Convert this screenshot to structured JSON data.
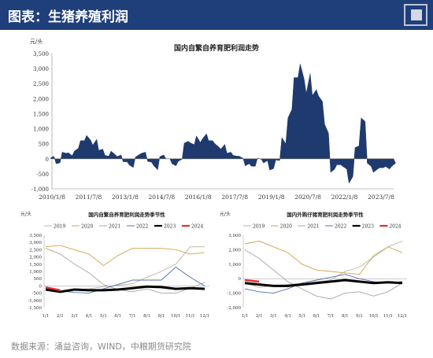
{
  "header": {
    "title": "图表：生猪养殖利润"
  },
  "footer": {
    "source": "数据来源：涌益咨询，WIND，中粮期货研究院"
  },
  "colors": {
    "header_bg": "#1f3f7a",
    "main_fill": "#1f3a6e"
  },
  "chart_data": [
    {
      "type": "area",
      "title": "国内自繁自养育肥利润走势",
      "ylabel": "元/头",
      "ylim": [
        -1000,
        3500
      ],
      "yticks": [
        "3,500",
        "3,000",
        "2,500",
        "2,000",
        "1,500",
        "1,000",
        "500",
        "0",
        "-500",
        "-1,000"
      ],
      "xticks": [
        "2010/1/8",
        "2011/7/8",
        "2013/1/8",
        "2014/7/8",
        "2016/1/8",
        "2017/7/8",
        "2019/1/8",
        "2020/7/8",
        "2022/1/8",
        "2023/7/8"
      ],
      "x": [
        "2010-01",
        "2010-04",
        "2010-07",
        "2010-10",
        "2011-01",
        "2011-04",
        "2011-07",
        "2011-10",
        "2012-01",
        "2012-04",
        "2012-07",
        "2012-10",
        "2013-01",
        "2013-04",
        "2013-07",
        "2013-10",
        "2014-01",
        "2014-04",
        "2014-07",
        "2014-10",
        "2015-01",
        "2015-04",
        "2015-07",
        "2015-10",
        "2016-01",
        "2016-04",
        "2016-07",
        "2016-10",
        "2017-01",
        "2017-04",
        "2017-07",
        "2017-10",
        "2018-01",
        "2018-04",
        "2018-07",
        "2018-10",
        "2019-01",
        "2019-04",
        "2019-07",
        "2019-10",
        "2020-01",
        "2020-04",
        "2020-07",
        "2020-10",
        "2021-01",
        "2021-04",
        "2021-07",
        "2021-10",
        "2022-01",
        "2022-04",
        "2022-07",
        "2022-10",
        "2023-01",
        "2023-04",
        "2023-07",
        "2023-10",
        "2024-01"
      ],
      "values": [
        50,
        -150,
        200,
        150,
        300,
        600,
        700,
        550,
        300,
        100,
        200,
        100,
        -100,
        -250,
        100,
        200,
        -100,
        -300,
        100,
        0,
        -200,
        -50,
        550,
        500,
        650,
        750,
        600,
        450,
        400,
        200,
        100,
        50,
        -200,
        -250,
        0,
        -100,
        -350,
        -50,
        600,
        1500,
        2700,
        2900,
        2500,
        2200,
        2000,
        1000,
        -400,
        -200,
        -300,
        -700,
        400,
        1300,
        -200,
        -400,
        -300,
        -300,
        -200
      ]
    },
    {
      "type": "line",
      "title": "国内自繁自养育肥利润走势季节性",
      "ylabel": "元/头",
      "ylim": [
        -1500,
        3500
      ],
      "yticks": [
        "3,500",
        "3,000",
        "2,500",
        "2,000",
        "1,500",
        "1,000",
        "500",
        "0",
        "-500",
        "-1,000",
        "-1,500"
      ],
      "categories": [
        "1/1",
        "2/1",
        "3/1",
        "4/1",
        "5/1",
        "6/1",
        "7/1",
        "8/1",
        "9/1",
        "10/1",
        "11/1",
        "12/1"
      ],
      "series": [
        {
          "name": "2019",
          "color": "#b9b39c",
          "values": [
            -300,
            -400,
            -250,
            -200,
            -50,
            50,
            150,
            600,
            1000,
            1500,
            2700,
            2700
          ]
        },
        {
          "name": "2020",
          "color": "#d4a24a",
          "values": [
            2700,
            2800,
            2500,
            2200,
            1400,
            2100,
            2600,
            2600,
            2600,
            2500,
            2200,
            2300
          ]
        },
        {
          "name": "2021",
          "color": "#a4a4a4",
          "values": [
            2600,
            2200,
            1500,
            900,
            100,
            -250,
            -400,
            -200,
            -500,
            -500,
            -150,
            250
          ]
        },
        {
          "name": "2022",
          "color": "#4f6fb5",
          "values": [
            -300,
            -350,
            -450,
            -500,
            -200,
            100,
            400,
            400,
            400,
            1300,
            600,
            0
          ]
        },
        {
          "name": "2023",
          "color": "#000000",
          "values": [
            -250,
            -400,
            -250,
            -300,
            -300,
            -250,
            -150,
            -50,
            -80,
            -200,
            -150,
            -200
          ]
        },
        {
          "name": "2024",
          "color": "#e03030",
          "values": [
            -100,
            -300,
            null,
            null,
            null,
            null,
            null,
            null,
            null,
            null,
            null,
            null
          ]
        }
      ]
    },
    {
      "type": "line",
      "title": "国内外购仔猪育肥利润走势季节性",
      "ylabel": "元/头",
      "ylim": [
        -2000,
        3000
      ],
      "yticks": [
        "3,000",
        "2,000",
        "1,000",
        "0",
        "-1,000",
        "-2,000"
      ],
      "categories": [
        "1/1",
        "2/1",
        "3/1",
        "4/1",
        "5/1",
        "6/1",
        "7/1",
        "8/1",
        "9/1",
        "10/1",
        "11/1",
        "12/1"
      ],
      "series": [
        {
          "name": "2019",
          "color": "#b9b39c",
          "values": [
            -300,
            -600,
            -500,
            -400,
            -300,
            -200,
            -100,
            500,
            800,
            1500,
            2200,
            2600
          ]
        },
        {
          "name": "2020",
          "color": "#d4a24a",
          "values": [
            2400,
            2600,
            2200,
            1800,
            1000,
            600,
            500,
            400,
            300,
            1600,
            2200,
            1800
          ]
        },
        {
          "name": "2021",
          "color": "#a4a4a4",
          "values": [
            2000,
            1400,
            600,
            -200,
            -700,
            -1200,
            -1400,
            -1000,
            -900,
            -1200,
            -900,
            -300
          ]
        },
        {
          "name": "2022",
          "color": "#4f6fb5",
          "values": [
            -700,
            -900,
            -1000,
            -700,
            -300,
            -100,
            100,
            300,
            0,
            -200,
            -300,
            -200
          ]
        },
        {
          "name": "2023",
          "color": "#000000",
          "values": [
            -300,
            -400,
            -500,
            -500,
            -400,
            -300,
            -200,
            -100,
            -200,
            -300,
            -250,
            -300
          ]
        },
        {
          "name": "2024",
          "color": "#e03030",
          "values": [
            -100,
            -200,
            null,
            null,
            null,
            null,
            null,
            null,
            null,
            null,
            null,
            null
          ]
        }
      ]
    }
  ]
}
